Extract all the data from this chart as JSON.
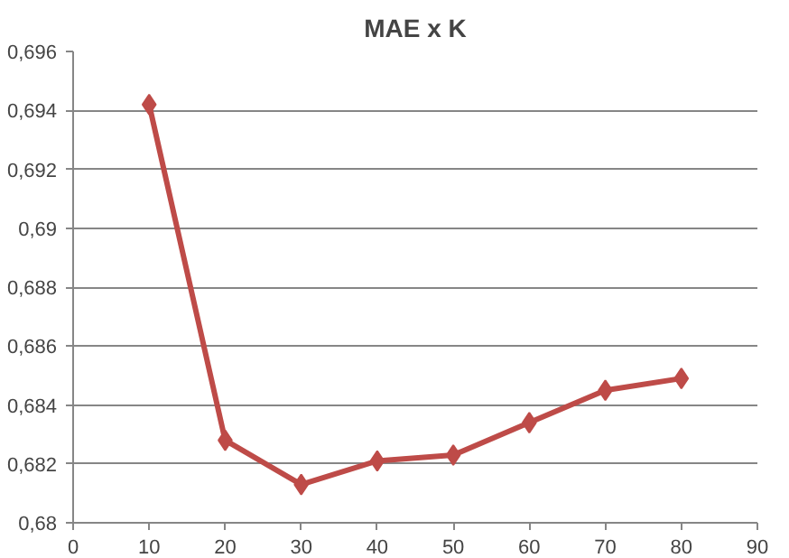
{
  "chart_data": {
    "type": "line",
    "title": "MAE x K",
    "x": [
      10,
      20,
      30,
      40,
      50,
      60,
      70,
      80
    ],
    "series": [
      {
        "color": "#be4b48",
        "values": [
          0.6942,
          0.6828,
          0.6813,
          0.6821,
          0.6823,
          0.6834,
          0.6845,
          0.6849
        ]
      }
    ],
    "xlim": [
      0,
      90
    ],
    "xticks": [
      0,
      10,
      20,
      30,
      40,
      50,
      60,
      70,
      80,
      90
    ],
    "ylim": [
      0.68,
      0.696
    ],
    "yticks": [
      {
        "value": 0.68,
        "label": "0,68"
      },
      {
        "value": 0.682,
        "label": "0,682"
      },
      {
        "value": 0.684,
        "label": "0,684"
      },
      {
        "value": 0.686,
        "label": "0,686"
      },
      {
        "value": 0.688,
        "label": "0,688"
      },
      {
        "value": 0.69,
        "label": "0,69"
      },
      {
        "value": 0.692,
        "label": "0,692"
      },
      {
        "value": 0.694,
        "label": "0,694"
      },
      {
        "value": 0.696,
        "label": "0,696"
      }
    ],
    "grid": "y",
    "marker": "diamond",
    "line_style": "solid"
  }
}
